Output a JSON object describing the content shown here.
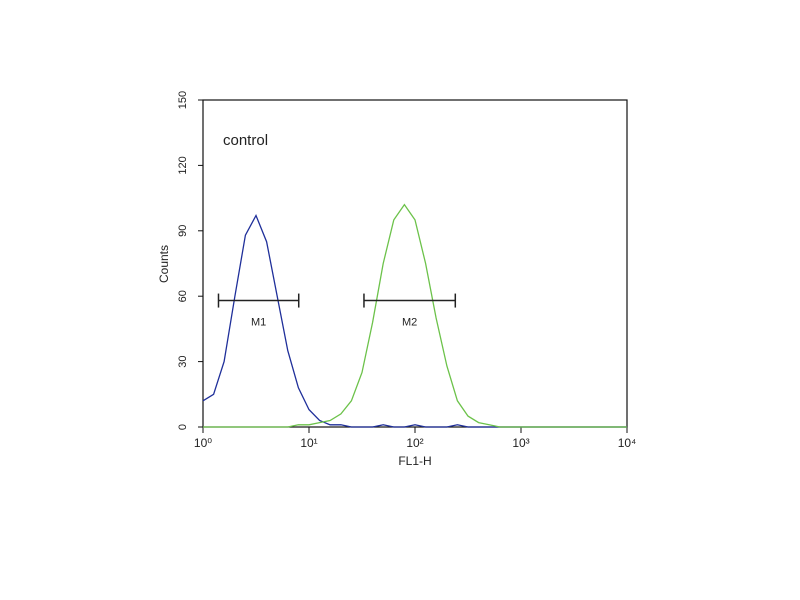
{
  "chart_data": {
    "type": "histogram-line",
    "annotation": "control",
    "xlabel": "FL1-H",
    "ylabel": "Counts",
    "xscale": "log",
    "xlim": [
      1,
      10000
    ],
    "ylim": [
      0,
      150
    ],
    "xticks": [
      {
        "value": 1,
        "label": "10⁰"
      },
      {
        "value": 10,
        "label": "10¹"
      },
      {
        "value": 100,
        "label": "10²"
      },
      {
        "value": 1000,
        "label": "10³"
      },
      {
        "value": 10000,
        "label": "10⁴"
      }
    ],
    "yticks": [
      0,
      30,
      60,
      90,
      120,
      150
    ],
    "x": [
      1,
      1.26,
      1.58,
      2,
      2.51,
      3.16,
      3.98,
      5.01,
      6.31,
      7.94,
      10,
      12.6,
      15.8,
      20,
      25.1,
      31.6,
      39.8,
      50.1,
      63.1,
      79.4,
      100,
      126,
      158,
      200,
      251,
      316,
      398,
      501,
      631,
      794,
      1000,
      1259,
      1585,
      1995,
      2512,
      3162,
      3981,
      5012,
      6310,
      7943,
      10000
    ],
    "series": [
      {
        "color": "#1f2f9a",
        "values": [
          12,
          15,
          30,
          60,
          88,
          97,
          85,
          60,
          35,
          18,
          8,
          3,
          1,
          1,
          0,
          0,
          0,
          1,
          0,
          0,
          1,
          0,
          0,
          0,
          1,
          0,
          0,
          0,
          0,
          0,
          0,
          0,
          0,
          0,
          0,
          0,
          0,
          0,
          0,
          0,
          0
        ]
      },
      {
        "color": "#6cc24a",
        "values": [
          0,
          0,
          0,
          0,
          0,
          0,
          0,
          0,
          0,
          1,
          1,
          2,
          3,
          6,
          12,
          25,
          48,
          75,
          95,
          102,
          95,
          75,
          50,
          28,
          12,
          5,
          2,
          1,
          0,
          0,
          0,
          0,
          0,
          0,
          0,
          0,
          0,
          0,
          0,
          0,
          0
        ]
      }
    ],
    "markers": [
      {
        "label": "M1",
        "x": [
          1.4,
          8
        ],
        "y": 58
      },
      {
        "label": "M2",
        "x": [
          33,
          240
        ],
        "y": 58
      }
    ]
  }
}
